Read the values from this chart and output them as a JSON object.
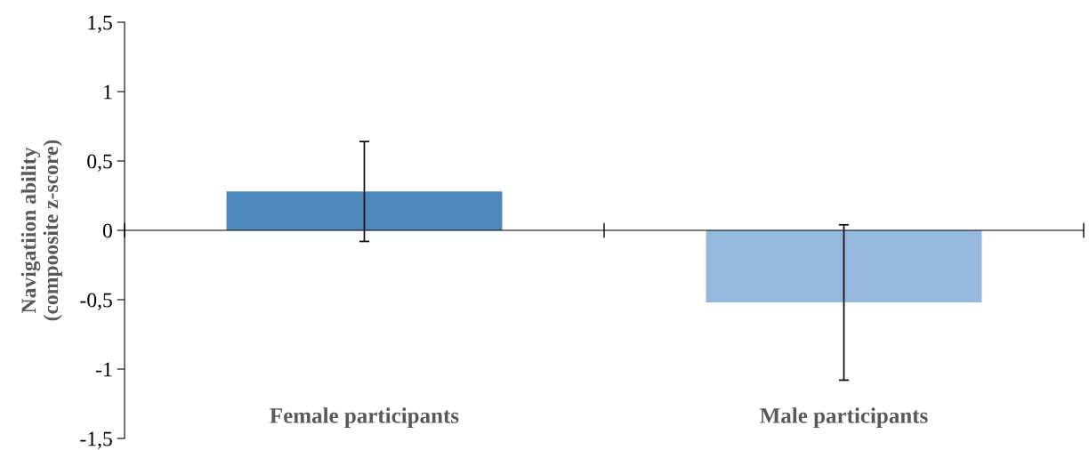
{
  "chart_data": {
    "type": "bar",
    "ylabel": "Navigatiion ability\n(compoosite z-score)",
    "categories": [
      "Female participants",
      "Male participants"
    ],
    "values": [
      0.28,
      -0.52
    ],
    "errors": [
      0.36,
      0.56
    ],
    "colors": [
      "#4f88bd",
      "#95b8df"
    ],
    "ylim": [
      -1.5,
      1.5
    ],
    "yticks": [
      {
        "value": -1.5,
        "label": "-1,5"
      },
      {
        "value": -1,
        "label": "-1"
      },
      {
        "value": -0.5,
        "label": "-0,5"
      },
      {
        "value": 0,
        "label": "0"
      },
      {
        "value": 0.5,
        "label": "0,5"
      },
      {
        "value": 1,
        "label": "1"
      },
      {
        "value": 1.5,
        "label": "1,5"
      }
    ]
  }
}
